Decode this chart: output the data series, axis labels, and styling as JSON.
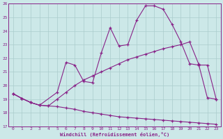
{
  "xlabel": "Windchill (Refroidissement éolien,°C)",
  "bg_color": "#cce8e8",
  "line_color": "#882288",
  "grid_color": "#aacccc",
  "xlim": [
    -0.5,
    23.5
  ],
  "ylim": [
    17,
    26
  ],
  "yticks": [
    17,
    18,
    19,
    20,
    21,
    22,
    23,
    24,
    25,
    26
  ],
  "xticks": [
    0,
    1,
    2,
    3,
    4,
    5,
    6,
    7,
    8,
    9,
    10,
    11,
    12,
    13,
    14,
    15,
    16,
    17,
    18,
    19,
    20,
    21,
    22,
    23
  ],
  "line1_x": [
    0,
    1,
    2,
    3,
    4,
    5,
    6,
    7,
    8,
    9,
    10,
    11,
    12,
    13,
    14,
    15,
    16,
    17,
    18,
    19,
    20,
    21,
    22,
    23
  ],
  "line1_y": [
    19.4,
    19.05,
    18.75,
    18.55,
    18.5,
    18.45,
    18.35,
    18.25,
    18.1,
    18.0,
    17.9,
    17.8,
    17.7,
    17.65,
    17.6,
    17.55,
    17.5,
    17.45,
    17.4,
    17.35,
    17.3,
    17.25,
    17.2,
    17.15
  ],
  "line2_x": [
    0,
    1,
    2,
    3,
    4,
    5,
    6,
    7,
    8,
    9,
    10,
    11,
    12,
    13,
    14,
    15,
    16,
    17,
    18,
    19,
    20,
    21,
    22,
    23
  ],
  "line2_y": [
    19.4,
    19.05,
    18.75,
    18.55,
    18.5,
    19.0,
    19.5,
    20.0,
    20.4,
    20.7,
    21.0,
    21.3,
    21.6,
    21.9,
    22.1,
    22.3,
    22.5,
    22.7,
    22.85,
    23.0,
    23.2,
    21.6,
    19.1,
    19.0
  ],
  "line3_x": [
    0,
    1,
    2,
    3,
    5,
    6,
    7,
    8,
    9,
    10,
    11,
    12,
    13,
    14,
    15,
    16,
    17,
    18,
    19,
    20,
    21,
    22,
    23
  ],
  "line3_y": [
    19.4,
    19.05,
    18.75,
    18.55,
    19.5,
    21.7,
    21.5,
    20.3,
    20.2,
    22.4,
    24.25,
    22.9,
    23.0,
    24.8,
    25.85,
    25.85,
    25.6,
    24.5,
    23.2,
    21.6,
    21.5,
    21.5,
    19.0
  ]
}
